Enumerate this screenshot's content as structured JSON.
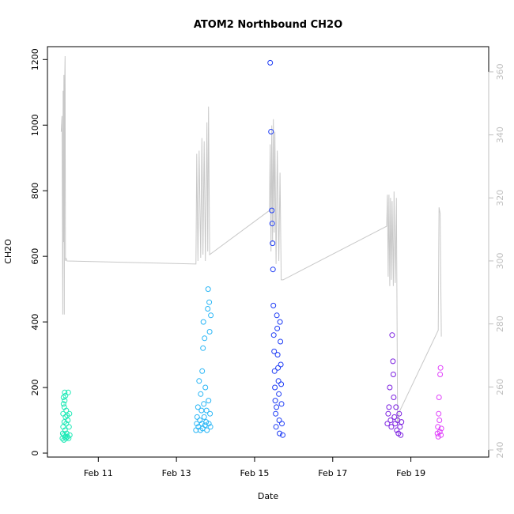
{
  "chart_data": {
    "type": "scatter",
    "title": "ATOM2 Northbound CH2O",
    "xlabel": "Date",
    "ylabel": "CH2O",
    "x_ticks": [
      {
        "day": 11,
        "label": "Feb 11"
      },
      {
        "day": 13,
        "label": "Feb 13"
      },
      {
        "day": 15,
        "label": "Feb 15"
      },
      {
        "day": 17,
        "label": "Feb 17"
      },
      {
        "day": 19,
        "label": "Feb 19"
      }
    ],
    "xlim": [
      9.84,
      20.85
    ],
    "ylim": [
      0,
      1220
    ],
    "y_ticks": [
      0,
      200,
      400,
      600,
      800,
      1000,
      1200
    ],
    "right_axis": {
      "ylim": [
        239,
        366
      ],
      "ticks": [
        240,
        260,
        280,
        300,
        320,
        340,
        360
      ],
      "color": "#bfbfbf",
      "label": ""
    },
    "grid": false,
    "series": [
      {
        "color": "#1de9b6",
        "points": [
          [
            10.08,
            45
          ],
          [
            10.09,
            60
          ],
          [
            10.1,
            80
          ],
          [
            10.1,
            120
          ],
          [
            10.11,
            150
          ],
          [
            10.11,
            170
          ],
          [
            10.12,
            40
          ],
          [
            10.12,
            55
          ],
          [
            10.13,
            95
          ],
          [
            10.13,
            140
          ],
          [
            10.14,
            160
          ],
          [
            10.14,
            185
          ],
          [
            10.15,
            50
          ],
          [
            10.15,
            70
          ],
          [
            10.16,
            110
          ],
          [
            10.16,
            175
          ],
          [
            10.17,
            45
          ],
          [
            10.18,
            90
          ],
          [
            10.18,
            130
          ],
          [
            10.19,
            60
          ],
          [
            10.2,
            115
          ],
          [
            10.21,
            50
          ],
          [
            10.22,
            100
          ],
          [
            10.23,
            185
          ],
          [
            10.24,
            45
          ],
          [
            10.25,
            80
          ],
          [
            10.26,
            120
          ],
          [
            10.27,
            55
          ]
        ]
      },
      {
        "color": "#29b6f6",
        "points": [
          [
            13.5,
            70
          ],
          [
            13.52,
            90
          ],
          [
            13.53,
            110
          ],
          [
            13.55,
            140
          ],
          [
            13.56,
            80
          ],
          [
            13.58,
            220
          ],
          [
            13.6,
            100
          ],
          [
            13.61,
            70
          ],
          [
            13.62,
            180
          ],
          [
            13.64,
            130
          ],
          [
            13.65,
            90
          ],
          [
            13.66,
            250
          ],
          [
            13.67,
            75
          ],
          [
            13.68,
            320
          ],
          [
            13.69,
            400
          ],
          [
            13.7,
            150
          ],
          [
            13.71,
            110
          ],
          [
            13.72,
            350
          ],
          [
            13.73,
            85
          ],
          [
            13.74,
            200
          ],
          [
            13.76,
            95
          ],
          [
            13.77,
            130
          ],
          [
            13.78,
            70
          ],
          [
            13.8,
            440
          ],
          [
            13.81,
            500
          ],
          [
            13.82,
            160
          ],
          [
            13.83,
            90
          ],
          [
            13.84,
            460
          ],
          [
            13.85,
            370
          ],
          [
            13.86,
            120
          ],
          [
            13.87,
            80
          ],
          [
            13.88,
            420
          ]
        ]
      },
      {
        "color": "#1e3cf5",
        "points": [
          [
            15.4,
            1190
          ],
          [
            15.42,
            980
          ],
          [
            15.44,
            740
          ],
          [
            15.45,
            700
          ],
          [
            15.46,
            640
          ],
          [
            15.47,
            560
          ],
          [
            15.48,
            450
          ],
          [
            15.49,
            360
          ],
          [
            15.5,
            310
          ],
          [
            15.51,
            250
          ],
          [
            15.52,
            200
          ],
          [
            15.53,
            160
          ],
          [
            15.54,
            120
          ],
          [
            15.55,
            80
          ],
          [
            15.56,
            140
          ],
          [
            15.57,
            420
          ],
          [
            15.58,
            380
          ],
          [
            15.59,
            300
          ],
          [
            15.6,
            260
          ],
          [
            15.61,
            220
          ],
          [
            15.62,
            180
          ],
          [
            15.63,
            100
          ],
          [
            15.64,
            60
          ],
          [
            15.65,
            400
          ],
          [
            15.66,
            340
          ],
          [
            15.67,
            270
          ],
          [
            15.68,
            210
          ],
          [
            15.69,
            150
          ],
          [
            15.7,
            90
          ],
          [
            15.72,
            55
          ]
        ]
      },
      {
        "color": "#7b1fe0",
        "points": [
          [
            18.4,
            90
          ],
          [
            18.42,
            120
          ],
          [
            18.44,
            140
          ],
          [
            18.46,
            200
          ],
          [
            18.48,
            100
          ],
          [
            18.5,
            80
          ],
          [
            18.52,
            360
          ],
          [
            18.54,
            280
          ],
          [
            18.55,
            240
          ],
          [
            18.56,
            170
          ],
          [
            18.58,
            110
          ],
          [
            18.6,
            90
          ],
          [
            18.62,
            140
          ],
          [
            18.64,
            70
          ],
          [
            18.66,
            100
          ],
          [
            18.68,
            60
          ],
          [
            18.7,
            120
          ],
          [
            18.72,
            80
          ],
          [
            18.74,
            55
          ],
          [
            18.76,
            95
          ]
        ]
      },
      {
        "color": "#e040fb",
        "points": [
          [
            19.68,
            60
          ],
          [
            19.69,
            80
          ],
          [
            19.7,
            50
          ],
          [
            19.71,
            120
          ],
          [
            19.72,
            170
          ],
          [
            19.73,
            100
          ],
          [
            19.74,
            65
          ],
          [
            19.75,
            240
          ],
          [
            19.76,
            260
          ],
          [
            19.77,
            55
          ],
          [
            19.78,
            75
          ]
        ]
      }
    ],
    "overlay_line": {
      "color": "#c8c8c8",
      "axis": "right",
      "points": [
        [
          10.05,
          341
        ],
        [
          10.07,
          346
        ],
        [
          10.09,
          283
        ],
        [
          10.1,
          354
        ],
        [
          10.11,
          306
        ],
        [
          10.12,
          359
        ],
        [
          10.13,
          283
        ],
        [
          10.14,
          357
        ],
        [
          10.15,
          365
        ],
        [
          10.16,
          300
        ],
        [
          10.17,
          301
        ],
        [
          10.2,
          300
        ],
        [
          13.5,
          299
        ],
        [
          13.52,
          334
        ],
        [
          13.55,
          300
        ],
        [
          13.58,
          335
        ],
        [
          13.62,
          301
        ],
        [
          13.65,
          339
        ],
        [
          13.68,
          302
        ],
        [
          13.71,
          338
        ],
        [
          13.74,
          300
        ],
        [
          13.78,
          344
        ],
        [
          13.8,
          303
        ],
        [
          13.82,
          349
        ],
        [
          13.85,
          302
        ],
        [
          15.38,
          316
        ],
        [
          15.4,
          337
        ],
        [
          15.42,
          303
        ],
        [
          15.44,
          343
        ],
        [
          15.46,
          306
        ],
        [
          15.48,
          345
        ],
        [
          15.5,
          309
        ],
        [
          15.52,
          341
        ],
        [
          15.55,
          299
        ],
        [
          15.58,
          335
        ],
        [
          15.62,
          300
        ],
        [
          15.65,
          328
        ],
        [
          15.68,
          294
        ],
        [
          15.7,
          294
        ],
        [
          15.73,
          294
        ],
        [
          18.38,
          311
        ],
        [
          18.4,
          321
        ],
        [
          18.42,
          295
        ],
        [
          18.44,
          321
        ],
        [
          18.46,
          292
        ],
        [
          18.48,
          320
        ],
        [
          18.5,
          294
        ],
        [
          18.52,
          319
        ],
        [
          18.55,
          292
        ],
        [
          18.57,
          322
        ],
        [
          18.6,
          293
        ],
        [
          18.63,
          320
        ],
        [
          18.66,
          248
        ],
        [
          18.7,
          252
        ],
        [
          19.7,
          278
        ],
        [
          19.72,
          317
        ],
        [
          19.75,
          315
        ],
        [
          19.78,
          276
        ]
      ]
    }
  }
}
